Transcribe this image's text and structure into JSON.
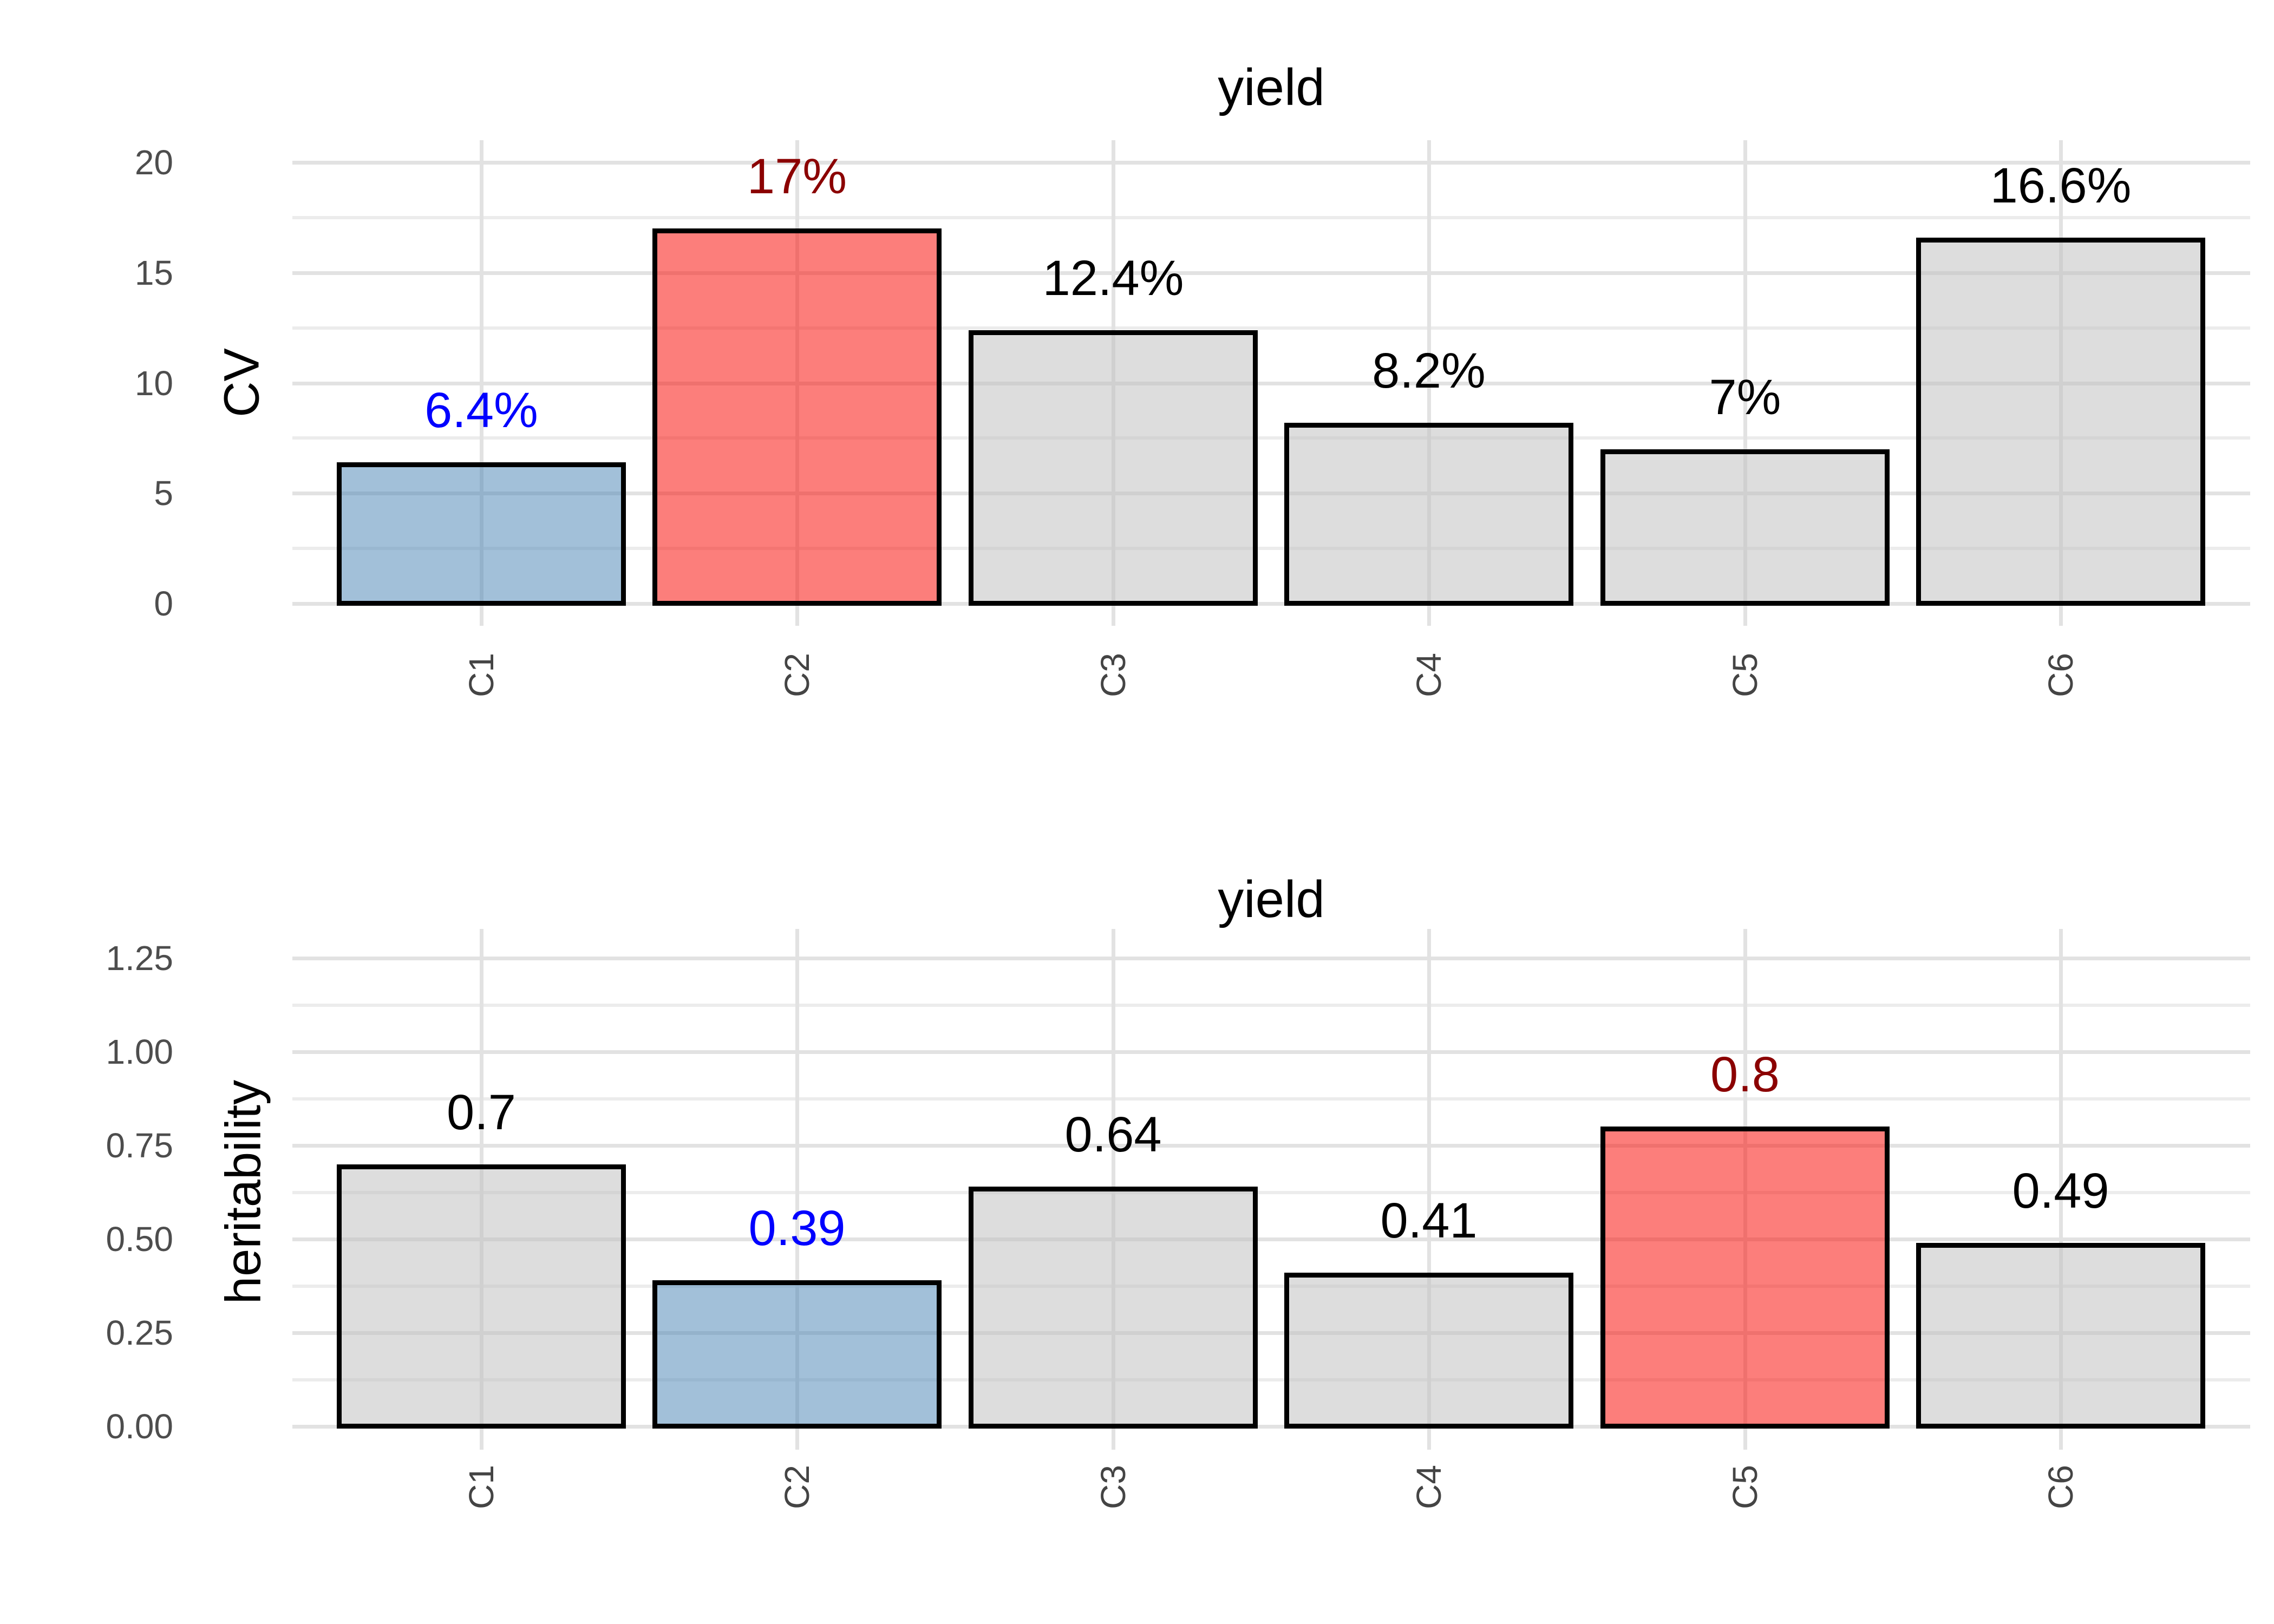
{
  "page": {
    "background": "#FFFFFF"
  },
  "colors": {
    "grid_major": "#E2E2E2",
    "grid_minor": "#ECECEC",
    "tick_label": "#4D4D4D",
    "title_text": "#000000",
    "bar_outline": "#000000",
    "highlight_blue_fill": "rgba(70,130,180,0.5)",
    "highlight_red_fill": "rgba(250,20,15,0.55)",
    "neutral_gray_fill": "rgba(193,193,193,0.55)",
    "blue_label_text": "#0000FF",
    "darkred_label_text": "#8B0000",
    "black_label_text": "#000000"
  },
  "chart_data": [
    {
      "type": "bar",
      "title": "yield",
      "ylabel": "CV",
      "xlabel": "",
      "categories": [
        "C1",
        "C2",
        "C3",
        "C4",
        "C5",
        "C6"
      ],
      "values": [
        6.4,
        17,
        12.4,
        8.2,
        7,
        16.6
      ],
      "bar_labels": [
        "6.4%",
        "17%",
        "12.4%",
        "8.2%",
        "7%",
        "16.6%"
      ],
      "bar_label_colors": [
        "#0000FF",
        "#8B0000",
        "#000000",
        "#000000",
        "#000000",
        "#000000"
      ],
      "bar_fill_colors": [
        "rgba(70,130,180,0.5)",
        "rgba(250,20,15,0.55)",
        "rgba(193,193,193,0.55)",
        "rgba(193,193,193,0.55)",
        "rgba(193,193,193,0.55)",
        "rgba(193,193,193,0.55)"
      ],
      "ylim": [
        0,
        20
      ],
      "yticks": [
        0,
        5,
        10,
        15,
        20
      ],
      "ytick_labels": [
        "0",
        "5",
        "10",
        "15",
        "20"
      ],
      "grid": "horizontal major+minor, vertical major at categories",
      "legend": "none"
    },
    {
      "type": "bar",
      "title": "yield",
      "ylabel": "heritability",
      "xlabel": "",
      "categories": [
        "C1",
        "C2",
        "C3",
        "C4",
        "C5",
        "C6"
      ],
      "values": [
        0.7,
        0.39,
        0.64,
        0.41,
        0.8,
        0.49
      ],
      "bar_labels": [
        "0.7",
        "0.39",
        "0.64",
        "0.41",
        "0.8",
        "0.49"
      ],
      "bar_label_colors": [
        "#000000",
        "#0000FF",
        "#000000",
        "#000000",
        "#8B0000",
        "#000000"
      ],
      "bar_fill_colors": [
        "rgba(193,193,193,0.55)",
        "rgba(70,130,180,0.5)",
        "rgba(193,193,193,0.55)",
        "rgba(193,193,193,0.55)",
        "rgba(250,20,15,0.55)",
        "rgba(193,193,193,0.55)"
      ],
      "ylim": [
        0,
        1.25
      ],
      "yticks": [
        0,
        0.25,
        0.5,
        0.75,
        1,
        1.25
      ],
      "ytick_labels": [
        "0.00",
        "0.25",
        "0.50",
        "0.75",
        "1.00",
        "1.25"
      ],
      "grid": "horizontal major+minor, vertical major at categories",
      "legend": "none"
    }
  ]
}
